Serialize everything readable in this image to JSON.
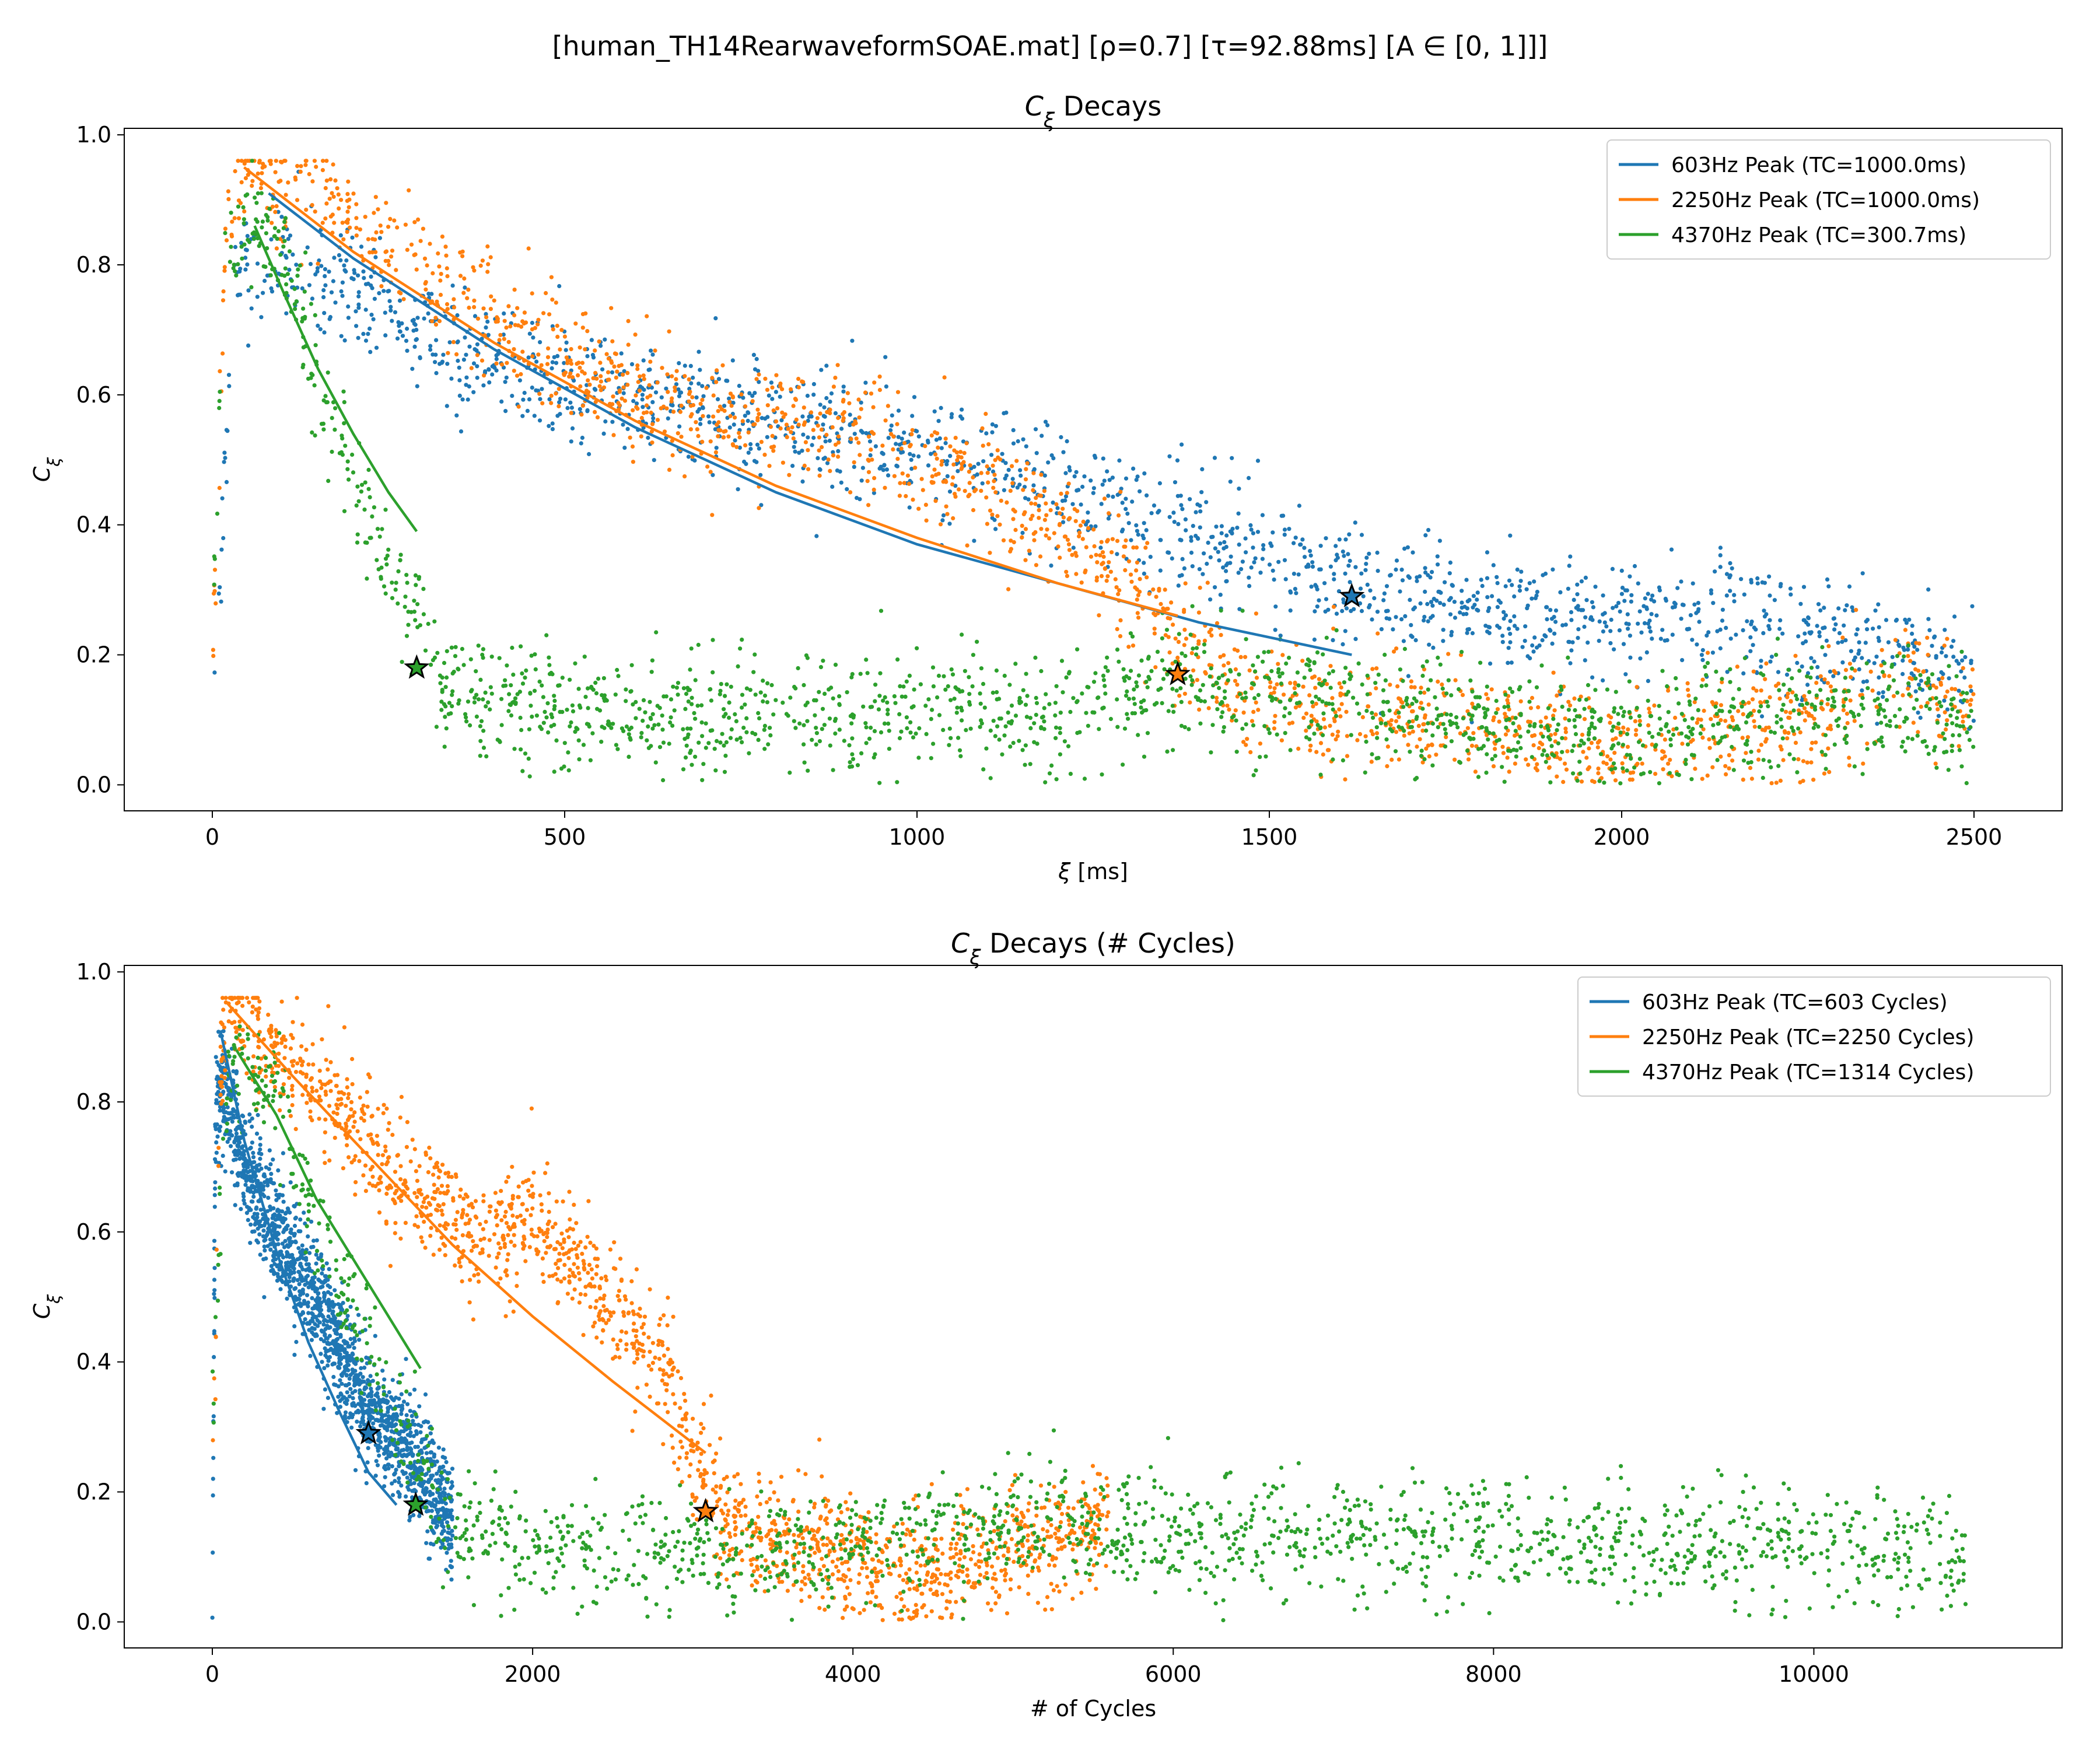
{
  "suptitle": "[human_TH14RearwaveformSOAE.mat]   [ρ=0.7]   [τ=92.88ms]   [A ∈ [0, 1]]]",
  "colors": {
    "blue": "#1f77b4",
    "orange": "#ff7f0e",
    "green": "#2ca02c"
  },
  "chart_data": [
    {
      "type": "scatter",
      "title": "C_ξ Decays",
      "xlabel": "ξ [ms]",
      "ylabel": "C_ξ",
      "xlim": [
        -125,
        2625
      ],
      "ylim": [
        -0.04,
        1.01
      ],
      "xticks": [
        0,
        500,
        1000,
        1500,
        2000,
        2500
      ],
      "yticks": [
        0.0,
        0.2,
        0.4,
        0.6,
        0.8,
        1.0
      ],
      "grid": false,
      "legend_placement": "top-right",
      "legend": [
        "603Hz Peak (TC=1000.0ms)",
        "2250Hz Peak (TC=1000.0ms)",
        "4370Hz Peak (TC=300.7ms)"
      ],
      "series": [
        {
          "name": "603Hz Peak (TC=1000.0ms)",
          "color": "#1f77b4",
          "scatter_trend": [
            [
              0,
              0.01
            ],
            [
              30,
              0.8
            ],
            [
              100,
              0.8
            ],
            [
              300,
              0.7
            ],
            [
              500,
              0.62
            ],
            [
              700,
              0.58
            ],
            [
              900,
              0.55
            ],
            [
              1100,
              0.49
            ],
            [
              1300,
              0.42
            ],
            [
              1500,
              0.35
            ],
            [
              1650,
              0.3
            ],
            [
              1900,
              0.26
            ],
            [
              2200,
              0.25
            ],
            [
              2500,
              0.18
            ]
          ],
          "fit_curve": [
            [
              80,
              0.91
            ],
            [
              200,
              0.81
            ],
            [
              400,
              0.67
            ],
            [
              600,
              0.55
            ],
            [
              800,
              0.45
            ],
            [
              1000,
              0.37
            ],
            [
              1200,
              0.31
            ],
            [
              1400,
              0.25
            ],
            [
              1617,
              0.2
            ]
          ],
          "marker": [
            1617,
            0.29
          ]
        },
        {
          "name": "2250Hz Peak (TC=1000.0ms)",
          "color": "#ff7f0e",
          "scatter_trend": [
            [
              0,
              0.17
            ],
            [
              20,
              0.85
            ],
            [
              45,
              0.95
            ],
            [
              150,
              0.91
            ],
            [
              300,
              0.78
            ],
            [
              500,
              0.65
            ],
            [
              700,
              0.56
            ],
            [
              900,
              0.55
            ],
            [
              1100,
              0.46
            ],
            [
              1250,
              0.37
            ],
            [
              1370,
              0.22
            ],
            [
              1500,
              0.12
            ],
            [
              1700,
              0.1
            ],
            [
              1900,
              0.08
            ],
            [
              2000,
              0.05
            ],
            [
              2100,
              0.08
            ],
            [
              2300,
              0.1
            ],
            [
              2400,
              0.17
            ],
            [
              2500,
              0.12
            ]
          ],
          "fit_curve": [
            [
              45,
              0.95
            ],
            [
              200,
              0.82
            ],
            [
              400,
              0.68
            ],
            [
              600,
              0.56
            ],
            [
              800,
              0.46
            ],
            [
              1000,
              0.38
            ],
            [
              1200,
              0.31
            ],
            [
              1370,
              0.26
            ]
          ],
          "marker": [
            1370,
            0.17
          ]
        },
        {
          "name": "4370Hz Peak (TC=300.7ms)",
          "color": "#2ca02c",
          "scatter_trend": [
            [
              0,
              0.28
            ],
            [
              20,
              0.8
            ],
            [
              40,
              0.88
            ],
            [
              100,
              0.82
            ],
            [
              150,
              0.62
            ],
            [
              200,
              0.46
            ],
            [
              250,
              0.35
            ],
            [
              290,
              0.25
            ],
            [
              330,
              0.15
            ],
            [
              500,
              0.11
            ],
            [
              800,
              0.1
            ],
            [
              1000,
              0.12
            ],
            [
              1200,
              0.11
            ],
            [
              1400,
              0.16
            ],
            [
              1700,
              0.11
            ],
            [
              2000,
              0.07
            ],
            [
              2300,
              0.12
            ],
            [
              2500,
              0.1
            ]
          ],
          "fit_curve": [
            [
              60,
              0.86
            ],
            [
              100,
              0.76
            ],
            [
              150,
              0.64
            ],
            [
              200,
              0.54
            ],
            [
              250,
              0.45
            ],
            [
              290,
              0.39
            ]
          ],
          "marker": [
            290,
            0.18
          ]
        }
      ]
    },
    {
      "type": "scatter",
      "title": "C_ξ Decays (# Cycles)",
      "xlabel": "# of Cycles",
      "ylabel": "C_ξ",
      "xlim": [
        -550,
        11550
      ],
      "ylim": [
        -0.04,
        1.01
      ],
      "xticks": [
        0,
        2000,
        4000,
        6000,
        8000,
        10000
      ],
      "yticks": [
        0.0,
        0.2,
        0.4,
        0.6,
        0.8,
        1.0
      ],
      "grid": false,
      "legend_placement": "top-right",
      "legend": [
        "603Hz Peak (TC=603 Cycles)",
        "2250Hz Peak (TC=2250 Cycles)",
        "4370Hz Peak (TC=1314 Cycles)"
      ],
      "series": [
        {
          "name": "603Hz Peak (TC=603 Cycles)",
          "color": "#1f77b4",
          "scatter_trend": [
            [
              0,
              0.01
            ],
            [
              20,
              0.8
            ],
            [
              80,
              0.82
            ],
            [
              200,
              0.7
            ],
            [
              400,
              0.6
            ],
            [
              600,
              0.52
            ],
            [
              800,
              0.42
            ],
            [
              1000,
              0.32
            ],
            [
              1200,
              0.26
            ],
            [
              1350,
              0.22
            ],
            [
              1500,
              0.15
            ]
          ],
          "fit_curve": [
            [
              50,
              0.91
            ],
            [
              200,
              0.74
            ],
            [
              400,
              0.57
            ],
            [
              600,
              0.43
            ],
            [
              800,
              0.32
            ],
            [
              975,
              0.23
            ],
            [
              1150,
              0.18
            ]
          ],
          "marker": [
            975,
            0.29
          ]
        },
        {
          "name": "2250Hz Peak (TC=2250 Cycles)",
          "color": "#ff7f0e",
          "scatter_trend": [
            [
              0,
              0.17
            ],
            [
              50,
              0.85
            ],
            [
              100,
              0.95
            ],
            [
              400,
              0.88
            ],
            [
              800,
              0.78
            ],
            [
              1200,
              0.68
            ],
            [
              1600,
              0.6
            ],
            [
              2000,
              0.62
            ],
            [
              2400,
              0.52
            ],
            [
              2800,
              0.4
            ],
            [
              3000,
              0.26
            ],
            [
              3200,
              0.15
            ],
            [
              3600,
              0.12
            ],
            [
              4000,
              0.1
            ],
            [
              4400,
              0.06
            ],
            [
              4800,
              0.1
            ],
            [
              5200,
              0.12
            ],
            [
              5600,
              0.17
            ]
          ],
          "fit_curve": [
            [
              100,
              0.95
            ],
            [
              500,
              0.84
            ],
            [
              1000,
              0.71
            ],
            [
              1500,
              0.58
            ],
            [
              2000,
              0.47
            ],
            [
              2500,
              0.37
            ],
            [
              3080,
              0.26
            ]
          ],
          "marker": [
            3080,
            0.17
          ]
        },
        {
          "name": "4370Hz Peak (TC=1314 Cycles)",
          "color": "#2ca02c",
          "scatter_trend": [
            [
              0,
              0.28
            ],
            [
              80,
              0.8
            ],
            [
              150,
              0.88
            ],
            [
              400,
              0.82
            ],
            [
              650,
              0.62
            ],
            [
              900,
              0.46
            ],
            [
              1100,
              0.35
            ],
            [
              1300,
              0.25
            ],
            [
              1450,
              0.15
            ],
            [
              2000,
              0.12
            ],
            [
              3000,
              0.11
            ],
            [
              4000,
              0.12
            ],
            [
              5000,
              0.15
            ],
            [
              6000,
              0.14
            ],
            [
              7000,
              0.13
            ],
            [
              8000,
              0.13
            ],
            [
              9000,
              0.12
            ],
            [
              10000,
              0.12
            ],
            [
              10950,
              0.1
            ]
          ],
          "fit_curve": [
            [
              150,
              0.88
            ],
            [
              400,
              0.78
            ],
            [
              650,
              0.65
            ],
            [
              900,
              0.55
            ],
            [
              1100,
              0.47
            ],
            [
              1300,
              0.39
            ]
          ],
          "marker": [
            1270,
            0.18
          ]
        }
      ]
    }
  ]
}
